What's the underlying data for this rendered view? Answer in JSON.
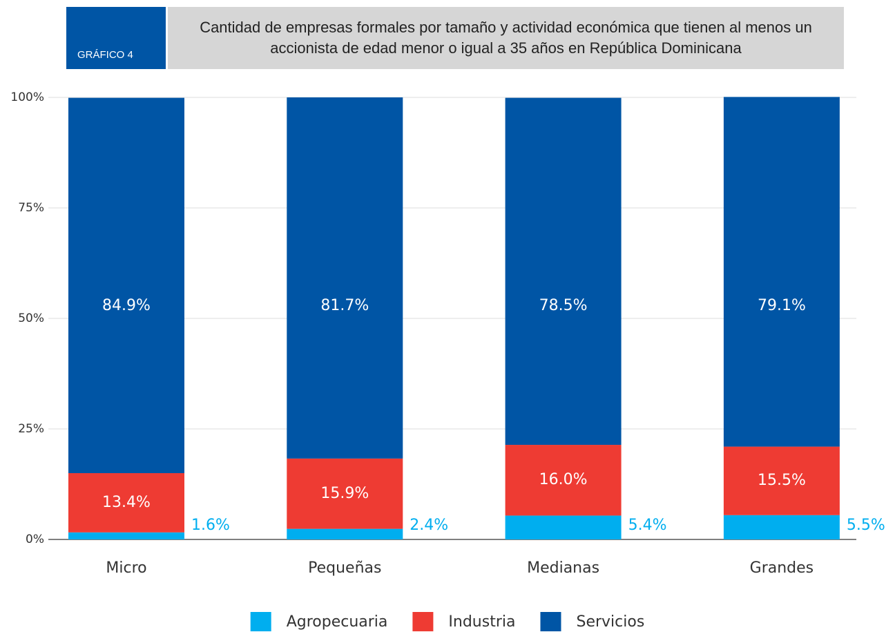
{
  "chart_data": {
    "type": "stacked_bar",
    "tag": "GRÁFICO 4",
    "title": "Cantidad de empresas formales por tamaño y actividad económica que tienen al menos un accionista de edad menor o igual a 35 años en República Dominicana",
    "categories": [
      "Micro",
      "Pequeñas",
      "Medianas",
      "Grandes"
    ],
    "series": [
      {
        "name": "Agropecuaria",
        "color": "#00aeef",
        "values": [
          1.6,
          2.4,
          5.4,
          5.5
        ],
        "value_labels": [
          "1.6%",
          "2.4%",
          "5.4%",
          "5.5%"
        ]
      },
      {
        "name": "Industria",
        "color": "#ee3b33",
        "values": [
          13.4,
          15.9,
          16.0,
          15.5
        ],
        "value_labels": [
          "13.4%",
          "15.9%",
          "16.0%",
          "15.5%"
        ]
      },
      {
        "name": "Servicios",
        "color": "#0055a5",
        "values": [
          84.9,
          81.7,
          78.5,
          79.1
        ],
        "value_labels": [
          "84.9%",
          "81.7%",
          "78.5%",
          "79.1%"
        ]
      }
    ],
    "ylim": [
      0,
      100
    ],
    "yticks": [
      {
        "value": 0,
        "label": "0%"
      },
      {
        "value": 25,
        "label": "25%"
      },
      {
        "value": 50,
        "label": "50%"
      },
      {
        "value": 75,
        "label": "75%"
      },
      {
        "value": 100,
        "label": "100%"
      }
    ],
    "grid": true
  }
}
